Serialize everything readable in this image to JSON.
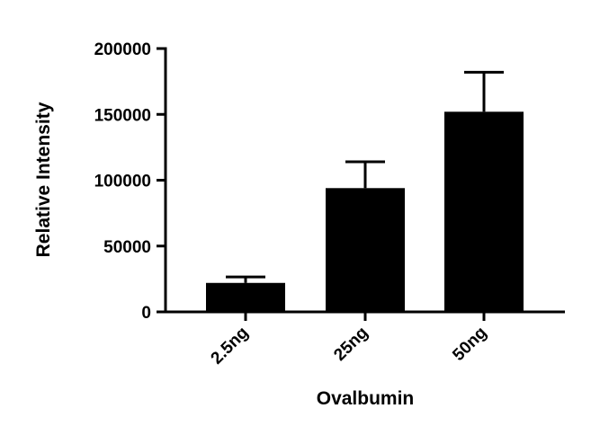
{
  "chart_data": {
    "type": "bar",
    "categories": [
      "2.5ng",
      "25ng",
      "50ng"
    ],
    "values": [
      22000,
      94000,
      152000
    ],
    "error_upper": [
      26500,
      114000,
      182000
    ],
    "xlabel": "Ovalbumin",
    "ylabel": "Relative Intensity",
    "ylim": [
      0,
      200000
    ],
    "yticks": [
      0,
      50000,
      100000,
      150000,
      200000
    ],
    "ytick_labels": [
      "0",
      "50000",
      "100000",
      "150000",
      "200000"
    ],
    "grid": false,
    "legend": "none",
    "bar_color": "#000000"
  }
}
